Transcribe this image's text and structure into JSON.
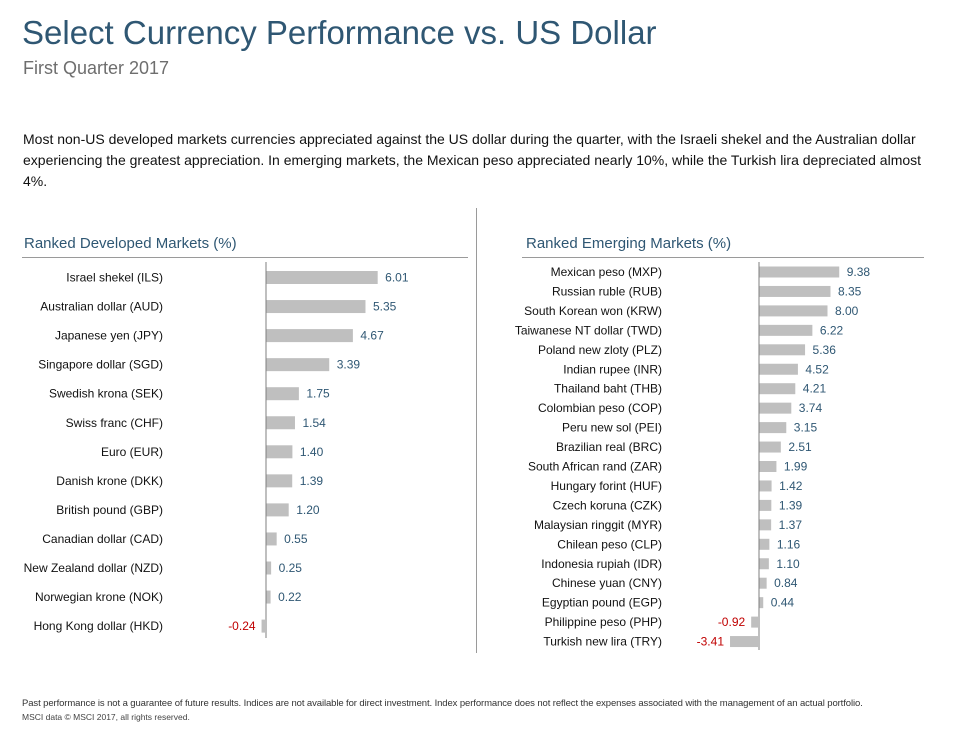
{
  "header": {
    "title": "Select Currency Performance vs. US Dollar",
    "subtitle": "First Quarter 2017"
  },
  "intro": "Most non-US developed markets currencies appreciated against the US dollar during the quarter, with the Israeli shekel and the Australian dollar experiencing the greatest appreciation. In emerging markets, the Mexican peso appreciated nearly 10%, while the Turkish lira depreciated almost 4%.",
  "footer": {
    "disclaimer": "Past performance is not a guarantee of future results. Indices are not available for direct investment. Index performance does not reflect the expenses associated with the management of an actual portfolio.",
    "source": "MSCI data © MSCI 2017, all rights reserved."
  },
  "colors": {
    "bar": "#bfbfbf",
    "positive_label": "#2f5773",
    "negative_label": "#c00000",
    "heading": "#2f5773"
  },
  "chart_data": [
    {
      "type": "bar",
      "orientation": "horizontal",
      "title": "Ranked Developed Markets (%)",
      "categories": [
        "Israel shekel (ILS)",
        "Australian dollar (AUD)",
        "Japanese yen (JPY)",
        "Singapore dollar (SGD)",
        "Swedish krona (SEK)",
        "Swiss franc (CHF)",
        "Euro (EUR)",
        "Danish krone (DKK)",
        "British pound (GBP)",
        "Canadian dollar (CAD)",
        "New Zealand dollar (NZD)",
        "Norwegian krone (NOK)",
        "Hong Kong dollar (HKD)"
      ],
      "values": [
        6.01,
        5.35,
        4.67,
        3.39,
        1.75,
        1.54,
        1.4,
        1.39,
        1.2,
        0.55,
        0.25,
        0.22,
        -0.24
      ],
      "value_labels": [
        "6.01",
        "5.35",
        "4.67",
        "3.39",
        "1.75",
        "1.54",
        "1.40",
        "1.39",
        "1.20",
        "0.55",
        "0.25",
        "0.22",
        "-0.24"
      ],
      "xlabel": "",
      "ylabel": "",
      "grid": false,
      "legend": "none"
    },
    {
      "type": "bar",
      "orientation": "horizontal",
      "title": "Ranked Emerging Markets (%)",
      "categories": [
        "Mexican peso (MXP)",
        "Russian ruble (RUB)",
        "South Korean won (KRW)",
        "Taiwanese NT dollar (TWD)",
        "Poland new zloty (PLZ)",
        "Indian rupee (INR)",
        "Thailand baht (THB)",
        "Colombian peso (COP)",
        "Peru new sol (PEI)",
        "Brazilian real (BRC)",
        "South African rand (ZAR)",
        "Hungary forint (HUF)",
        "Czech koruna (CZK)",
        "Malaysian ringgit (MYR)",
        "Chilean peso (CLP)",
        "Indonesia rupiah (IDR)",
        "Chinese yuan (CNY)",
        "Egyptian pound (EGP)",
        "Philippine peso (PHP)",
        "Turkish new lira (TRY)"
      ],
      "values": [
        9.38,
        8.35,
        8.0,
        6.22,
        5.36,
        4.52,
        4.21,
        3.74,
        3.15,
        2.51,
        1.99,
        1.42,
        1.39,
        1.37,
        1.16,
        1.1,
        0.84,
        0.44,
        -0.92,
        -3.41
      ],
      "value_labels": [
        "9.38",
        "8.35",
        "8.00",
        "6.22",
        "5.36",
        "4.52",
        "4.21",
        "3.74",
        "3.15",
        "2.51",
        "1.99",
        "1.42",
        "1.39",
        "1.37",
        "1.16",
        "1.10",
        "0.84",
        "0.44",
        "-0.92",
        "-3.41"
      ],
      "xlabel": "",
      "ylabel": "",
      "grid": false,
      "legend": "none"
    }
  ]
}
